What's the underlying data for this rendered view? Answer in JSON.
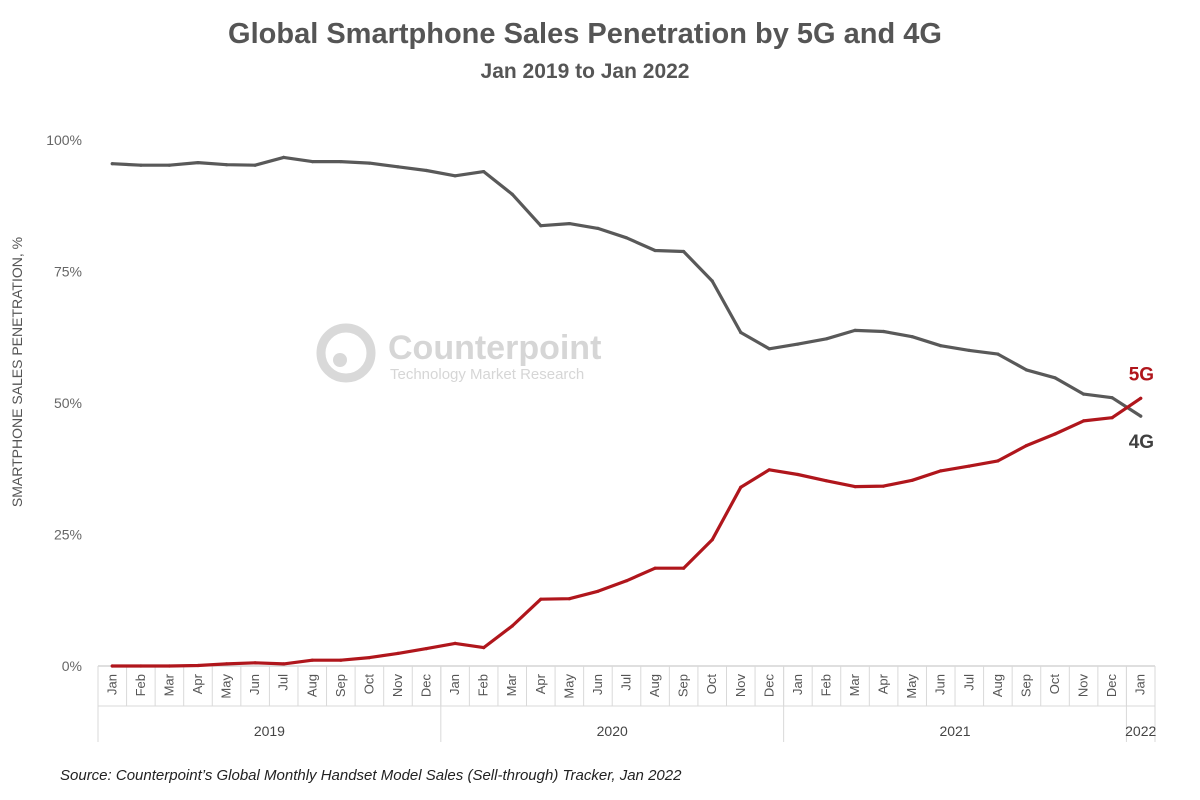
{
  "chart_data": {
    "type": "line",
    "title": "Global Smartphone Sales Penetration by 5G and 4G",
    "subtitle": "Jan 2019 to Jan 2022",
    "ylabel": "SMARTPHONE SALES PENETRATION, %",
    "xlabel": "",
    "ylim": [
      0,
      100
    ],
    "yticks": [
      "0%",
      "25%",
      "50%",
      "75%",
      "100%"
    ],
    "ytick_values": [
      0,
      25,
      50,
      75,
      100
    ],
    "categories": [
      "Jan",
      "Feb",
      "Mar",
      "Apr",
      "May",
      "Jun",
      "Jul",
      "Aug",
      "Sep",
      "Oct",
      "Nov",
      "Dec",
      "Jan",
      "Feb",
      "Mar",
      "Apr",
      "May",
      "Jun",
      "Jul",
      "Aug",
      "Sep",
      "Oct",
      "Nov",
      "Dec",
      "Jan",
      "Feb",
      "Mar",
      "Apr",
      "May",
      "Jun",
      "Jul",
      "Aug",
      "Sep",
      "Oct",
      "Nov",
      "Dec",
      "Jan"
    ],
    "year_groups": [
      {
        "label": "2019",
        "start": 0,
        "end": 11
      },
      {
        "label": "2020",
        "start": 12,
        "end": 23
      },
      {
        "label": "2021",
        "start": 24,
        "end": 35
      },
      {
        "label": "2022",
        "start": 36,
        "end": 36
      }
    ],
    "series": [
      {
        "name": "4G",
        "color": "#595959",
        "values": [
          95.5,
          95.2,
          95.2,
          95.7,
          95.3,
          95.2,
          96.7,
          95.9,
          95.9,
          95.6,
          94.9,
          94.2,
          93.2,
          94.0,
          89.7,
          83.7,
          84.1,
          83.2,
          81.4,
          79.0,
          78.8,
          73.2,
          63.4,
          60.3,
          61.2,
          62.2,
          63.8,
          63.6,
          62.6,
          60.9,
          60.0,
          59.3,
          56.3,
          54.8,
          51.7,
          51.0,
          47.5
        ]
      },
      {
        "name": "5G",
        "color": "#b0161c",
        "values": [
          0.0,
          0.0,
          0.0,
          0.1,
          0.4,
          0.6,
          0.4,
          1.1,
          1.1,
          1.6,
          2.4,
          3.3,
          4.3,
          3.5,
          7.6,
          12.7,
          12.8,
          14.2,
          16.2,
          18.6,
          18.6,
          24.0,
          34.0,
          37.3,
          36.4,
          35.2,
          34.1,
          34.2,
          35.3,
          37.1,
          38.0,
          39.0,
          41.9,
          44.1,
          46.6,
          47.2,
          50.9
        ]
      }
    ],
    "grid": false,
    "legend": "inline end labels"
  },
  "watermark": {
    "name": "Counterpoint",
    "tagline": "Technology Market Research"
  },
  "source": "Source: Counterpoint’s Global Monthly Handset Model Sales (Sell-through) Tracker, Jan 2022"
}
